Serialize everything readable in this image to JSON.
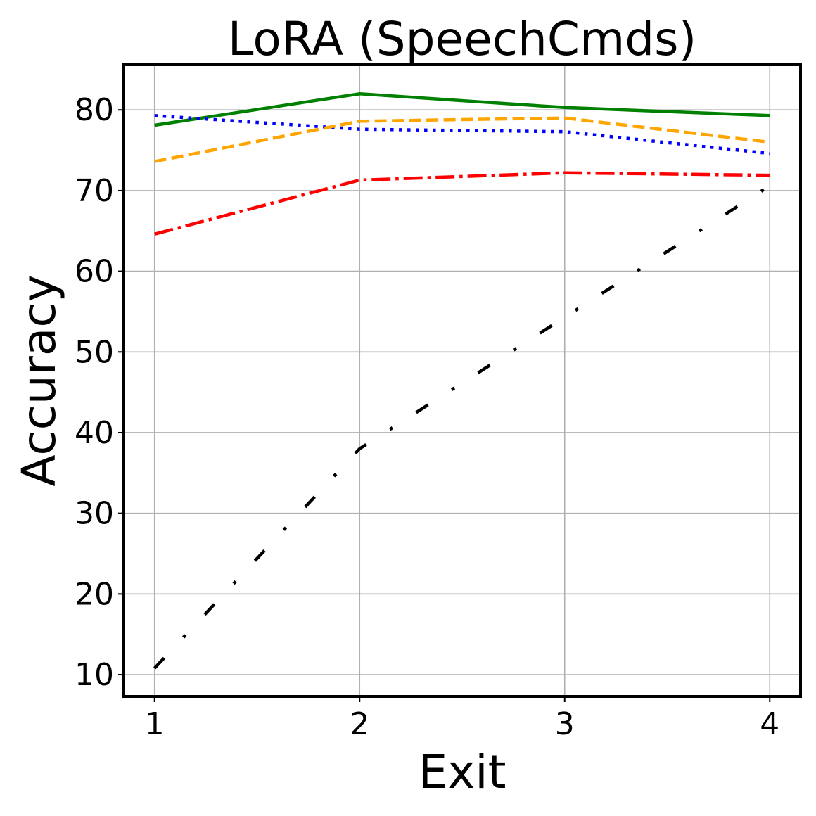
{
  "chart_data": {
    "type": "line",
    "title": "LoRA (SpeechCmds)",
    "xlabel": "Exit",
    "ylabel": "Accuracy",
    "x": [
      1,
      2,
      3,
      4
    ],
    "xticks": [
      "1",
      "2",
      "3",
      "4"
    ],
    "yticks": [
      "10",
      "20",
      "30",
      "40",
      "50",
      "60",
      "70",
      "80"
    ],
    "xlim": [
      0.85,
      4.15
    ],
    "ylim": [
      7.3,
      85.6
    ],
    "grid": true,
    "series": [
      {
        "values": [
          78.1,
          82.0,
          80.3,
          79.3
        ],
        "color": "#008000",
        "style": "solid"
      },
      {
        "values": [
          79.3,
          77.6,
          77.3,
          74.6
        ],
        "color": "#0000ff",
        "style": "dotted"
      },
      {
        "values": [
          73.6,
          78.6,
          79.0,
          76.0
        ],
        "color": "#ffa500",
        "style": "dashed"
      },
      {
        "values": [
          64.6,
          71.3,
          72.2,
          71.9
        ],
        "color": "#ff0000",
        "style": "dashdot"
      },
      {
        "values": [
          10.8,
          38.0,
          54.3,
          70.6
        ],
        "color": "#000000",
        "style": "loosely-dashdot"
      }
    ]
  }
}
